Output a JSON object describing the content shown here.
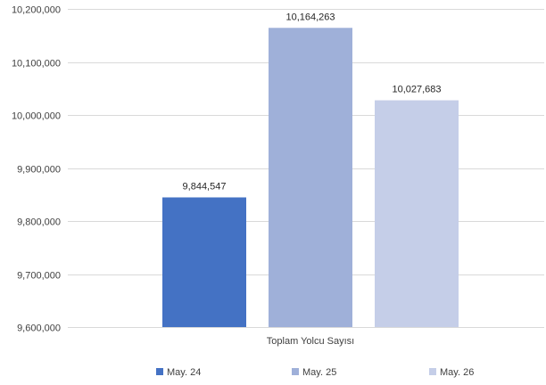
{
  "chart_data": {
    "type": "bar",
    "categories": [
      "Toplam Yolcu Sayısı"
    ],
    "series": [
      {
        "name": "May. 24",
        "values": [
          9844547
        ],
        "value_label": "9,844,547",
        "color": "#4472c4"
      },
      {
        "name": "May. 25",
        "values": [
          10164263
        ],
        "value_label": "10,164,263",
        "color": "#9fb0d9"
      },
      {
        "name": "May. 26",
        "values": [
          10027683
        ],
        "value_label": "10,027,683",
        "color": "#c5cee8"
      }
    ],
    "ylim": [
      9600000,
      10200000
    ],
    "yticks": [
      9600000,
      9700000,
      9800000,
      9900000,
      10000000,
      10100000,
      10200000
    ],
    "ytick_labels": [
      "9,600,000",
      "9,700,000",
      "9,800,000",
      "9,900,000",
      "10,000,000",
      "10,100,000",
      "10,200,000"
    ],
    "grid": true,
    "legend_position": "bottom"
  }
}
